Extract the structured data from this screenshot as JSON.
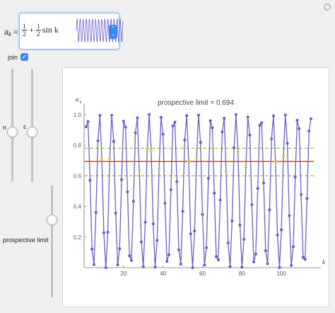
{
  "controls": {
    "ak_symbol": "a",
    "ak_sub": "k",
    "ak_eq": " =",
    "formula": {
      "frac1_num": "1",
      "frac1_den": "2",
      "plus": "+",
      "frac2_num": "1",
      "frac2_den": "2",
      "func": "sin k"
    },
    "join_label": "join",
    "join_checked": true,
    "n_label": "n",
    "eps_label": "ϵ",
    "prospective_limit_label": "prospective limit",
    "slider_levels": {
      "n": 0.56,
      "epsilon": 0.56,
      "prospective_limit": 0.3
    }
  },
  "colors": {
    "series": "#6c5fc7",
    "mean_line": "#f07a2c",
    "band": "#8cc63f",
    "highlight": "#e5c34d",
    "accent": "#3a86f0"
  },
  "chart_data": {
    "type": "line",
    "title": "prospective limit = 0.694",
    "ylabel": "a",
    "ylabel_sub": "k",
    "xlabel": "k",
    "xlim": [
      0,
      120
    ],
    "ylim": [
      0,
      1.05
    ],
    "xticks": [
      20,
      40,
      60,
      80,
      100
    ],
    "yticks": [
      0.2,
      0.4,
      0.6,
      0.8,
      1.0
    ],
    "series_formula": "1/2 + 1/2 sin k",
    "k_range": [
      1,
      115
    ],
    "prospective_limit": 0.694,
    "band": [
      0.6,
      0.78
    ],
    "highlight_points": "points with 0.6 ≤ a_k ≤ 0.78"
  }
}
